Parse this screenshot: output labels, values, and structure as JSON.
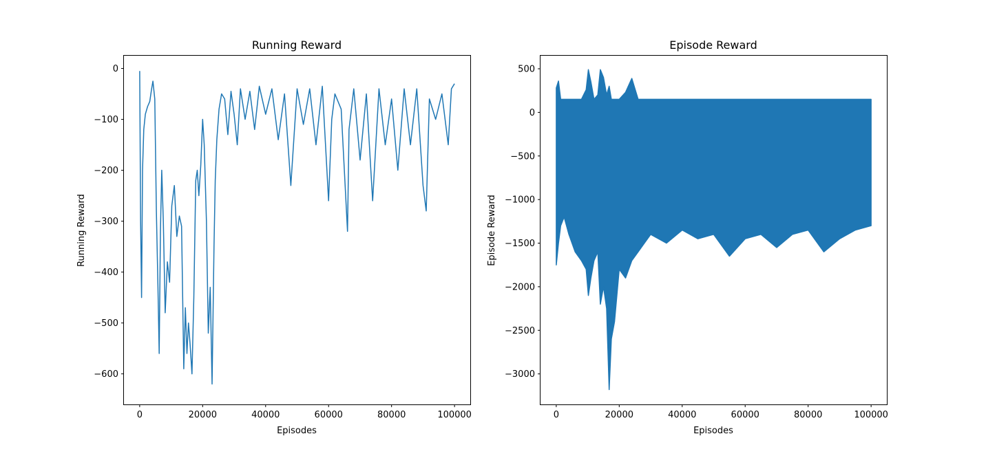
{
  "chart_data": [
    {
      "type": "line",
      "title": "Running Reward",
      "xlabel": "Episodes",
      "ylabel": "Running Reward",
      "xlim": [
        -5000,
        105000
      ],
      "ylim": [
        -660,
        25
      ],
      "xticks": [
        0,
        20000,
        40000,
        60000,
        80000,
        100000
      ],
      "xtick_labels": [
        "0",
        "20000",
        "40000",
        "60000",
        "80000",
        "100000"
      ],
      "yticks": [
        0,
        -100,
        -200,
        -300,
        -400,
        -500,
        -600
      ],
      "ytick_labels": [
        "0",
        "−100",
        "−200",
        "−300",
        "−400",
        "−500",
        "−600"
      ],
      "grid": false,
      "color": "#1f77b4",
      "series": [
        {
          "x": [
            0,
            300,
            600,
            900,
            1300,
            1800,
            2500,
            3200,
            3800,
            4200,
            4800,
            5300,
            5800,
            6200,
            6600,
            7000,
            7500,
            8100,
            8800,
            9500,
            10200,
            11000,
            11800,
            12600,
            13300,
            14000,
            14500,
            15000,
            15500,
            16000,
            16600,
            17200,
            17800,
            18300,
            18800,
            19400,
            20000,
            20500,
            21200,
            21800,
            22400,
            23000,
            23600,
            24000,
            24500,
            25200,
            26000,
            27000,
            28000,
            29000,
            30000,
            31000,
            32000,
            33500,
            35000,
            36500,
            38000,
            40000,
            42000,
            44000,
            46000,
            48000,
            50000,
            52000,
            54000,
            56000,
            58000,
            60000,
            61000,
            62000,
            64000,
            66000,
            66500,
            68000,
            70000,
            72000,
            74000,
            76000,
            78000,
            80000,
            82000,
            84000,
            86000,
            88000,
            90000,
            91000,
            92000,
            94000,
            96000,
            98000,
            99000,
            100000
          ],
          "y": [
            -5,
            -300,
            -450,
            -200,
            -120,
            -90,
            -75,
            -65,
            -40,
            -25,
            -60,
            -280,
            -430,
            -560,
            -320,
            -200,
            -300,
            -480,
            -380,
            -420,
            -270,
            -230,
            -330,
            -290,
            -310,
            -590,
            -470,
            -560,
            -500,
            -540,
            -600,
            -450,
            -220,
            -200,
            -250,
            -190,
            -100,
            -150,
            -300,
            -520,
            -430,
            -620,
            -350,
            -220,
            -140,
            -80,
            -50,
            -60,
            -130,
            -45,
            -90,
            -150,
            -40,
            -100,
            -45,
            -120,
            -35,
            -90,
            -40,
            -140,
            -50,
            -230,
            -40,
            -110,
            -40,
            -150,
            -35,
            -260,
            -100,
            -50,
            -80,
            -320,
            -120,
            -40,
            -180,
            -50,
            -260,
            -40,
            -150,
            -60,
            -200,
            -40,
            -150,
            -40,
            -230,
            -280,
            -60,
            -100,
            -50,
            -150,
            -40,
            -30
          ]
        }
      ]
    },
    {
      "type": "line",
      "title": "Episode Reward",
      "xlabel": "Episodes",
      "ylabel": "Episode Reward",
      "xlim": [
        -5000,
        105000
      ],
      "ylim": [
        -3350,
        650
      ],
      "xticks": [
        0,
        20000,
        40000,
        60000,
        80000,
        100000
      ],
      "xtick_labels": [
        "0",
        "20000",
        "40000",
        "60000",
        "80000",
        "100000"
      ],
      "yticks": [
        500,
        0,
        -500,
        -1000,
        -1500,
        -2000,
        -2500,
        -3000
      ],
      "ytick_labels": [
        "500",
        "0",
        "−500",
        "−1000",
        "−1500",
        "−2000",
        "−2500",
        "−3000"
      ],
      "grid": false,
      "color": "#1f77b4",
      "series": [
        {
          "x": [
            0,
            700,
            1400,
            2500,
            4000,
            6000,
            8000,
            9500,
            10200,
            11000,
            12000,
            13200,
            14000,
            15000,
            16000,
            16800,
            17500,
            18500,
            20000,
            22000,
            24000,
            26000,
            28000,
            30000,
            35000,
            40000,
            45000,
            50000,
            55000,
            60000,
            65000,
            70000,
            75000,
            80000,
            85000,
            90000,
            95000,
            100000
          ],
          "envelope_max": [
            280,
            360,
            150,
            150,
            150,
            150,
            150,
            260,
            490,
            350,
            150,
            200,
            490,
            400,
            200,
            300,
            150,
            150,
            150,
            230,
            390,
            150,
            150,
            150,
            150,
            150,
            150,
            150,
            150,
            150,
            150,
            150,
            150,
            150,
            150,
            150,
            150,
            150
          ],
          "envelope_min": [
            -1750,
            -1500,
            -1300,
            -1200,
            -1400,
            -1600,
            -1700,
            -1800,
            -2100,
            -1900,
            -1700,
            -1600,
            -2200,
            -2000,
            -2250,
            -3180,
            -2600,
            -2400,
            -1800,
            -1900,
            -1700,
            -1600,
            -1500,
            -1400,
            -1500,
            -1350,
            -1450,
            -1400,
            -1650,
            -1450,
            -1400,
            -1550,
            -1400,
            -1350,
            -1600,
            -1450,
            -1350,
            -1300
          ]
        }
      ]
    }
  ]
}
